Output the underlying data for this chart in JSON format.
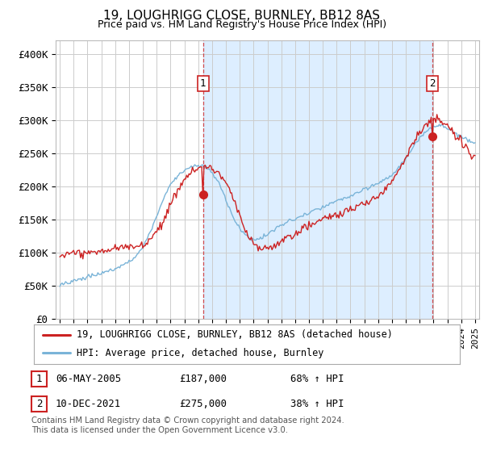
{
  "title": "19, LOUGHRIGG CLOSE, BURNLEY, BB12 8AS",
  "subtitle": "Price paid vs. HM Land Registry's House Price Index (HPI)",
  "ylim": [
    0,
    420000
  ],
  "yticks": [
    0,
    50000,
    100000,
    150000,
    200000,
    250000,
    300000,
    350000,
    400000
  ],
  "ytick_labels": [
    "£0",
    "£50K",
    "£100K",
    "£150K",
    "£200K",
    "£250K",
    "£300K",
    "£350K",
    "£400K"
  ],
  "xlim_left": 1994.7,
  "xlim_right": 2025.3,
  "sale1_date": 2005.35,
  "sale1_price": 187000,
  "sale1_label": "1",
  "sale2_date": 2021.92,
  "sale2_price": 275000,
  "sale2_label": "2",
  "hpi_color": "#7ab4d8",
  "price_color": "#cc2222",
  "vline_color": "#cc2222",
  "shade_color": "#ddeeff",
  "background_color": "#ffffff",
  "grid_color": "#cccccc",
  "legend_label1": "19, LOUGHRIGG CLOSE, BURNLEY, BB12 8AS (detached house)",
  "legend_label2": "HPI: Average price, detached house, Burnley",
  "footnote": "Contains HM Land Registry data © Crown copyright and database right 2024.\nThis data is licensed under the Open Government Licence v3.0.",
  "table_rows": [
    {
      "num": "1",
      "date": "06-MAY-2005",
      "price": "£187,000",
      "change": "68% ↑ HPI"
    },
    {
      "num": "2",
      "date": "10-DEC-2021",
      "price": "£275,000",
      "change": "38% ↑ HPI"
    }
  ]
}
